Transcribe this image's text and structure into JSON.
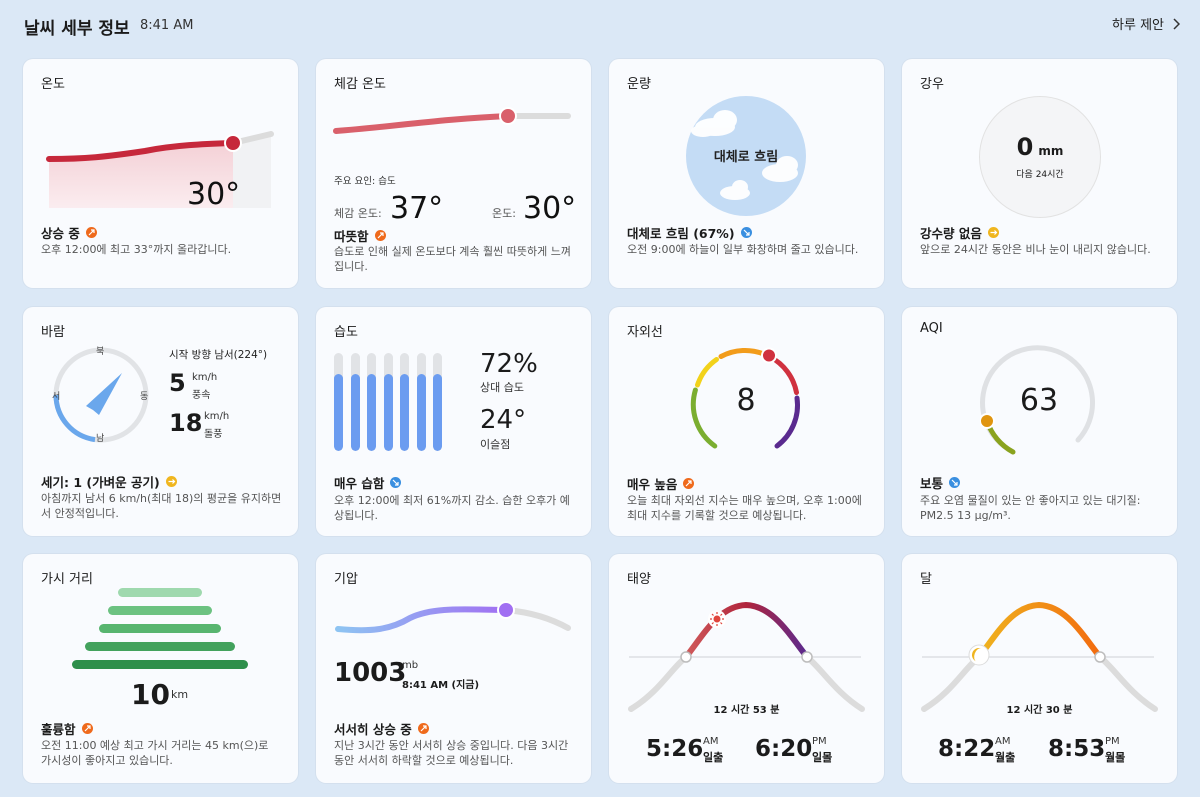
{
  "header": {
    "title": "날씨 세부 정보",
    "time": "8:41 AM",
    "link": "하루 제안"
  },
  "colors": {
    "up": "#ef6a1c",
    "down": "#3a8fe0",
    "flat": "#f0b61f",
    "bg": "#dbe8f6"
  },
  "temperature": {
    "title": "온도",
    "value": "30°",
    "status": "상승 중",
    "desc": "오후 12:00에 최고 33°까지 올라갑니다."
  },
  "feels": {
    "title": "체감 온도",
    "factor": "주요 요인: 습도",
    "feels_label": "체감 온도:",
    "feels_value": "37°",
    "temp_label": "온도:",
    "temp_value": "30°",
    "status": "따뜻함",
    "desc": "습도로 인해 실제 온도보다 계속 훨씬 따뜻하게 느껴집니다."
  },
  "cloud": {
    "title": "운량",
    "circle_text": "대체로 흐림",
    "status": "대체로 흐림 (67%)",
    "desc": "오전 9:00에 하늘이 일부 화창하며 줄고 있습니다.",
    "percent": 67
  },
  "rain": {
    "title": "강우",
    "amount": "0",
    "unit": "mm",
    "sub": "다음 24시간",
    "status": "강수량 없음",
    "desc": "앞으로 24시간 동안은 비나 눈이 내리지 않습니다."
  },
  "wind": {
    "title": "바람",
    "north": "북",
    "south": "남",
    "east": "동",
    "west": "서",
    "direction": "시작 방향 남서(224°)",
    "speed": "5",
    "speed_unit": "km/h",
    "speed_label": "풍속",
    "gust": "18",
    "gust_unit": "km/h",
    "gust_label": "돌풍",
    "status": "세기: 1 (가벼운 공기)",
    "desc": "아침까지 남서 6 km/h(최대 18)의 평균을 유지하면서 안정적입니다."
  },
  "humidity": {
    "title": "습도",
    "value": "72%",
    "value_label": "상대 습도",
    "dew": "24°",
    "dew_label": "이슬점",
    "status": "매우 습함",
    "desc": "오후 12:00에 최저 61%까지 감소. 습한 오후가 예상됩니다.",
    "bar_levels": [
      0.79,
      0.79,
      0.79,
      0.79,
      0.79,
      0.79,
      0.79
    ]
  },
  "uv": {
    "title": "자외선",
    "value": "8",
    "status": "매우 높음",
    "desc": "오늘 최대 자외선 지수는 매우 높으며, 오후 1:00에 최대 지수를 기록할 것으로 예상됩니다."
  },
  "aqi": {
    "title": "AQI",
    "value": "63",
    "status": "보통",
    "desc": "주요 오염 물질이 있는 안 좋아지고 있는 대기질: PM2.5 13 µg/m³."
  },
  "visibility": {
    "title": "가시 거리",
    "value": "10",
    "unit": "km",
    "status": "훌륭함",
    "desc": "오전 11:00 예상 최고 가시 거리는 45 km(으)로 가시성이 좋아지고 있습니다."
  },
  "pressure": {
    "title": "기압",
    "value": "1003",
    "unit": "mb",
    "time": "8:41 AM (지금)",
    "status": "서서히 상승 중",
    "desc": "지난 3시간 동안 서서히 상승 중입니다. 다음 3시간 동안 서서히 하락할 것으로 예상됩니다."
  },
  "sun": {
    "title": "태양",
    "duration": "12 시간 53 분",
    "rise_time": "5:26",
    "rise_ampm": "AM",
    "rise_label": "일출",
    "set_time": "6:20",
    "set_ampm": "PM",
    "set_label": "일몰"
  },
  "moon": {
    "title": "달",
    "duration": "12 시간 30 분",
    "rise_time": "8:22",
    "rise_ampm": "AM",
    "rise_label": "월출",
    "set_time": "8:53",
    "set_ampm": "PM",
    "set_label": "월몰"
  }
}
